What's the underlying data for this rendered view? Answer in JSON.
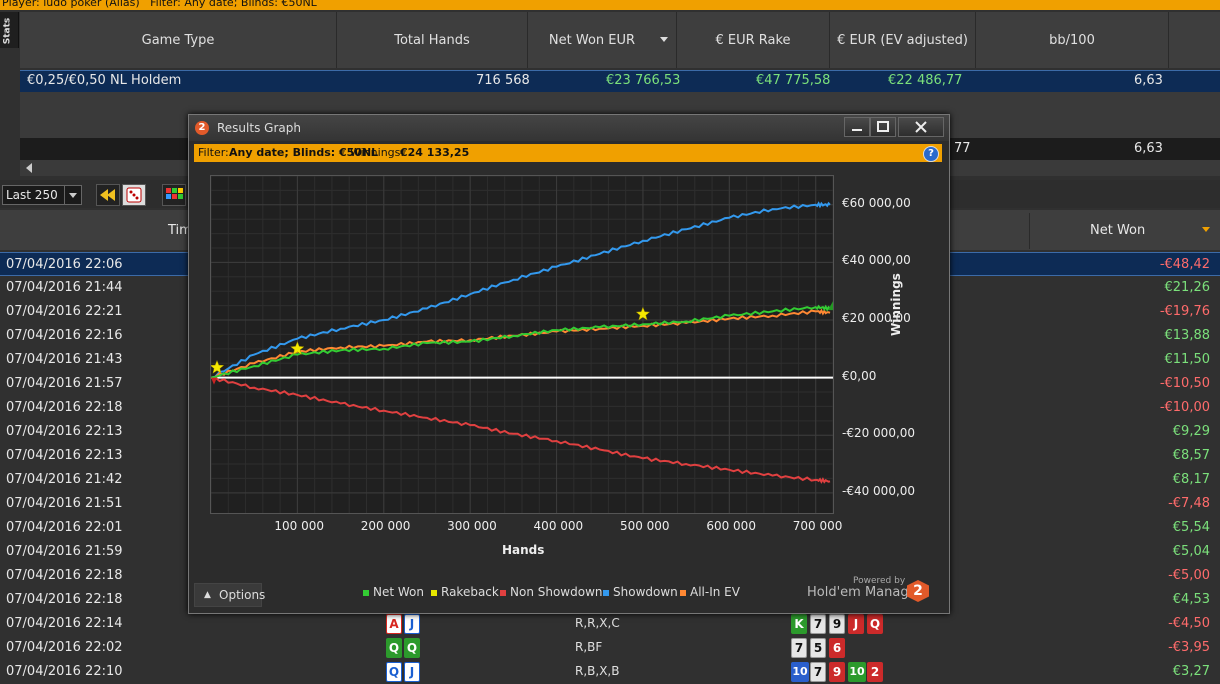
{
  "topbar": {
    "text": "Player: ludo poker (Alias)   Filter: Any date; Blinds: €50NL"
  },
  "stats_tab": "Stats",
  "stats_headers": [
    "Game Type",
    "Total Hands",
    "Net Won EUR",
    "€ EUR Rake",
    "€ EUR (EV adjusted)",
    "bb/100"
  ],
  "stats_row": {
    "game": "€0,25/€0,50 NL Holdem",
    "hands": "716 568",
    "net": "€23 766,53",
    "rake": "€47 775,58",
    "ev": "€22 486,77",
    "bb100": "6,63"
  },
  "totals_row": {
    "ev_partial": "77",
    "bb100": "6,63"
  },
  "toolbar": {
    "select_value": "Last 250"
  },
  "hands_headers": {
    "time": "Time",
    "net": "Net Won"
  },
  "hands": [
    {
      "time": "07/04/2016 22:06",
      "net": "-€48,42",
      "neg": true
    },
    {
      "time": "07/04/2016 21:44",
      "net": "€21,26",
      "neg": false
    },
    {
      "time": "07/04/2016 22:21",
      "net": "-€19,76",
      "neg": true
    },
    {
      "time": "07/04/2016 22:16",
      "net": "€13,88",
      "neg": false
    },
    {
      "time": "07/04/2016 21:43",
      "net": "€11,50",
      "neg": false
    },
    {
      "time": "07/04/2016 21:57",
      "net": "-€10,50",
      "neg": true
    },
    {
      "time": "07/04/2016 22:18",
      "net": "-€10,00",
      "neg": true
    },
    {
      "time": "07/04/2016 22:13",
      "net": "€9,29",
      "neg": false
    },
    {
      "time": "07/04/2016 22:13",
      "net": "€8,57",
      "neg": false
    },
    {
      "time": "07/04/2016 21:42",
      "net": "€8,17",
      "neg": false
    },
    {
      "time": "07/04/2016 21:51",
      "net": "-€7,48",
      "neg": true
    },
    {
      "time": "07/04/2016 22:01",
      "net": "€5,54",
      "neg": false
    },
    {
      "time": "07/04/2016 21:59",
      "net": "€5,04",
      "neg": false
    },
    {
      "time": "07/04/2016 22:18",
      "net": "-€5,00",
      "neg": true
    },
    {
      "time": "07/04/2016 22:18",
      "net": "€4,53",
      "neg": false
    },
    {
      "time": "07/04/2016 22:14",
      "net": "-€4,50",
      "neg": true
    },
    {
      "time": "07/04/2016 22:02",
      "net": "-€3,95",
      "neg": true
    },
    {
      "time": "07/04/2016 22:10",
      "net": "€3,27",
      "neg": false
    }
  ],
  "visible_hand_details": [
    {
      "hole": [
        "A",
        "J"
      ],
      "actions": "R,R,X,C",
      "board": [
        "K",
        "7",
        "9",
        "J",
        "Q"
      ]
    },
    {
      "hole": [
        "Q",
        "Q"
      ],
      "actions": "R,BF",
      "board": [
        "7",
        "5",
        "6"
      ]
    },
    {
      "hole": [
        "Q",
        "J"
      ],
      "actions": "R,B,X,B",
      "board": [
        "10",
        "7",
        "9",
        "10",
        "2"
      ]
    }
  ],
  "results_window": {
    "title": "Results Graph",
    "logo": "2",
    "filter_label": "Filter:",
    "filter_value": "Any date; Blinds: €50NL",
    "winnings_label": "Winnings:",
    "winnings_value": "€24 133,25",
    "help": "?",
    "options_label": "Options",
    "powered_by": "Powered by",
    "brand": "Hold'em Manager",
    "brand_logo": "2"
  },
  "chart_data": {
    "type": "line",
    "xlabel": "Hands",
    "ylabel": "Winnings",
    "xlim": [
      0,
      720000
    ],
    "ylim": [
      -47000,
      70000
    ],
    "x_ticks": [
      100000,
      200000,
      300000,
      400000,
      500000,
      600000,
      700000
    ],
    "x_tick_labels": [
      "100 000",
      "200 000",
      "300 000",
      "400 000",
      "500 000",
      "600 000",
      "700 000"
    ],
    "y_ticks": [
      60000,
      40000,
      20000,
      0,
      -20000,
      -40000
    ],
    "y_tick_labels": [
      "€60 000,00",
      "€40 000,00",
      "€20 000,00",
      "€0,00",
      "-€20 000,00",
      "-€40 000,00"
    ],
    "grid": true,
    "legend_position": "bottom",
    "x": [
      0,
      50000,
      100000,
      150000,
      200000,
      250000,
      300000,
      350000,
      400000,
      450000,
      500000,
      550000,
      600000,
      650000,
      700000,
      716568
    ],
    "series": [
      {
        "name": "Net Won",
        "color": "#33cc33",
        "values": [
          0,
          4000,
          8000,
          9500,
          10000,
          12000,
          12500,
          14500,
          16500,
          17500,
          18500,
          19500,
          21500,
          23000,
          24500,
          24000
        ]
      },
      {
        "name": "Rakeback",
        "color": "#e6e600",
        "values": [
          3500,
          null,
          10000,
          null,
          null,
          null,
          null,
          null,
          null,
          null,
          22000,
          null,
          null,
          null,
          null,
          null
        ]
      },
      {
        "name": "Non Showdown",
        "color": "#e04040",
        "values": [
          0,
          -3500,
          -6000,
          -9000,
          -11500,
          -14000,
          -16500,
          -19500,
          -22000,
          -25000,
          -28000,
          -30000,
          -32000,
          -34000,
          -35500,
          -36000
        ]
      },
      {
        "name": "Showdown",
        "color": "#3399ee",
        "values": [
          0,
          8000,
          13500,
          17000,
          20000,
          24000,
          29000,
          34000,
          38500,
          43000,
          47500,
          51500,
          55500,
          58500,
          60000,
          60000
        ]
      },
      {
        "name": "All-In EV",
        "color": "#ff8833",
        "values": [
          0,
          5000,
          9000,
          10500,
          11000,
          12500,
          13000,
          14500,
          16000,
          17000,
          18000,
          19000,
          20500,
          21500,
          23000,
          22500
        ]
      }
    ]
  },
  "colors": {
    "accent": "#f0a000",
    "selected_row": "#0d2b55",
    "positive": "#7be07b",
    "negative": "#ff6b6b"
  }
}
